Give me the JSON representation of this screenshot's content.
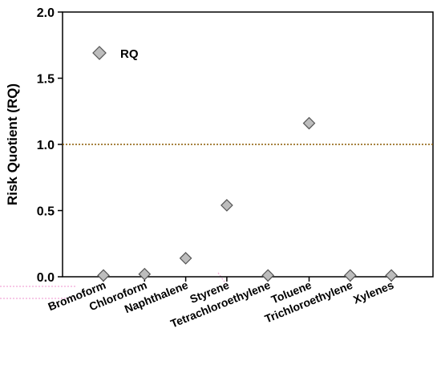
{
  "chart_data": {
    "type": "scatter",
    "categories": [
      "Bromoform",
      "Chloroform",
      "Naphthalene",
      "Styrene",
      "Tetrachloroethylene",
      "Toluene",
      "Trichloroethylene",
      "Xylenes"
    ],
    "series": [
      {
        "name": "RQ",
        "values": [
          0.01,
          0.02,
          0.14,
          0.54,
          0.01,
          1.16,
          0.01,
          0.01
        ]
      }
    ],
    "ylabel": "Risk Quotient (RQ)",
    "xlabel": "",
    "ylim": [
      0,
      2.0
    ],
    "yticks": [
      "0.0",
      "0.5",
      "1.0",
      "1.5",
      "2.0"
    ],
    "reference_line": {
      "value": 1.0,
      "style": "dotted",
      "color": "#8a5a00"
    },
    "marker": {
      "shape": "diamond",
      "fill": "#bdbdbd",
      "stroke": "#555555"
    },
    "legend": {
      "position": "top-left",
      "label": "RQ"
    },
    "grid": false
  }
}
